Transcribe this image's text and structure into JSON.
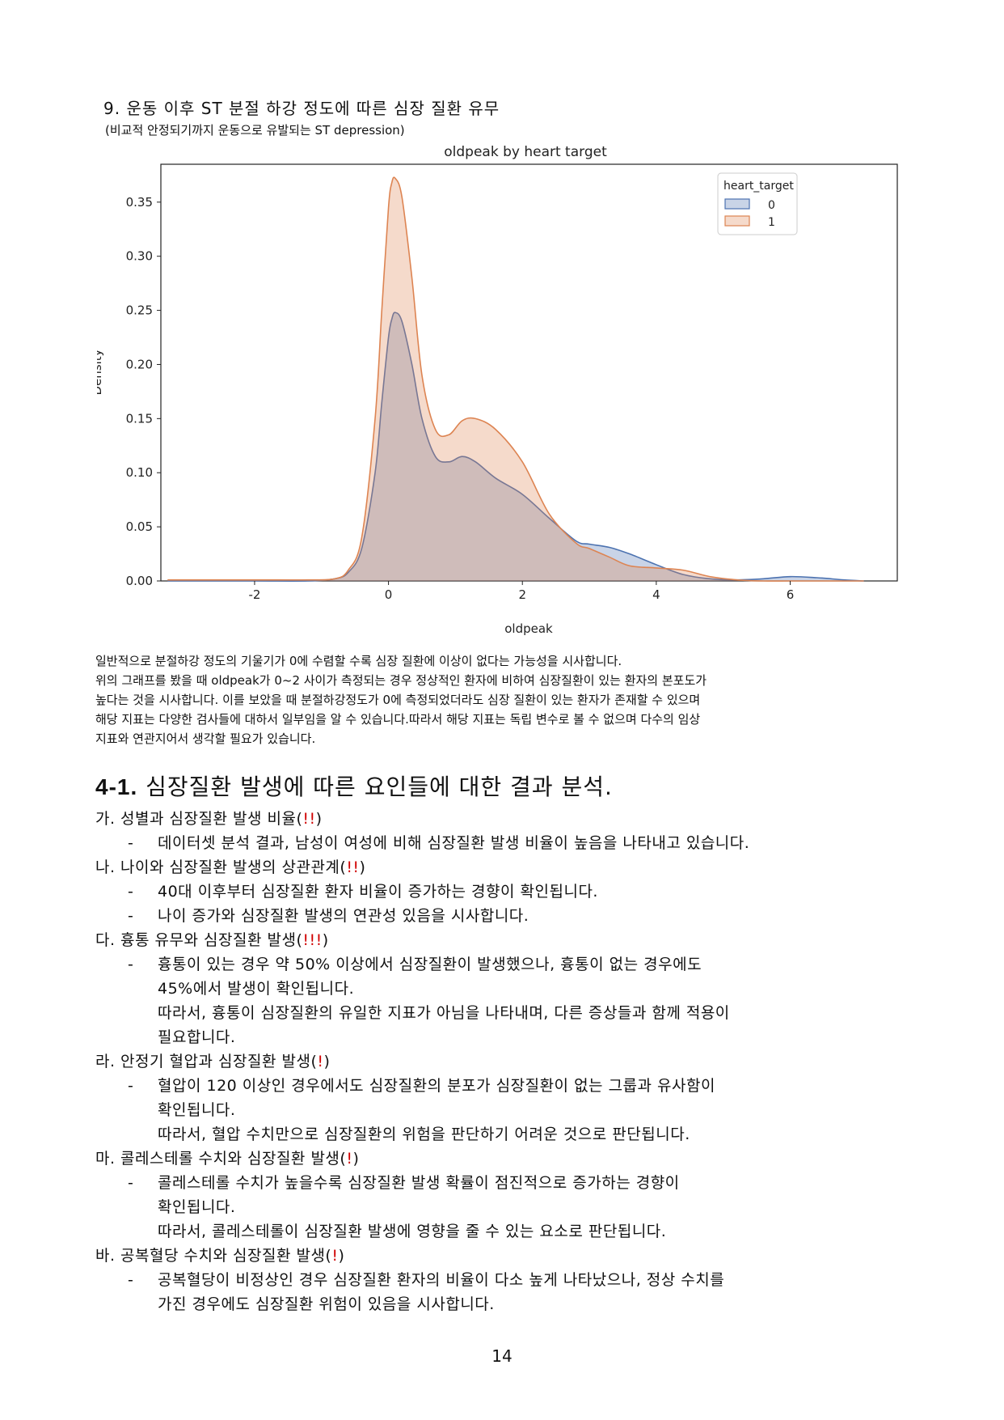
{
  "section": {
    "title": "9. 운동 이후 ST 분절 하강 정도에 따른 심장 질환 유무",
    "subtitle": "(비교적 안정되기까지 운동으로 유발되는 ST depression)"
  },
  "chart_data": {
    "type": "area",
    "title": "oldpeak by heart target",
    "xlabel": "oldpeak",
    "ylabel": "Density",
    "xlim": [
      -3.4,
      7.6
    ],
    "ylim": [
      0,
      0.385
    ],
    "x_ticks": [
      "-2",
      "0",
      "2",
      "4",
      "6"
    ],
    "y_ticks": [
      "0.00",
      "0.05",
      "0.10",
      "0.15",
      "0.20",
      "0.25",
      "0.30",
      "0.35"
    ],
    "grid": false,
    "legend": {
      "title": "heart_target",
      "placement": "top-right"
    },
    "x": [
      -3.3,
      -2,
      -1.2,
      -0.8,
      -0.6,
      -0.4,
      -0.2,
      -0.1,
      0,
      0.05,
      0.1,
      0.2,
      0.35,
      0.5,
      0.7,
      0.9,
      1.1,
      1.3,
      1.6,
      2.0,
      2.4,
      2.8,
      3.0,
      3.3,
      3.6,
      4.0,
      4.4,
      4.8,
      5.2,
      5.6,
      6.0,
      6.4,
      6.8,
      7.1
    ],
    "series": [
      {
        "name": "0",
        "color": "#4c72b0",
        "fill": "#c2d3e6",
        "values": [
          0,
          0,
          0,
          0.002,
          0.008,
          0.03,
          0.1,
          0.165,
          0.225,
          0.242,
          0.248,
          0.24,
          0.2,
          0.15,
          0.115,
          0.11,
          0.115,
          0.11,
          0.095,
          0.08,
          0.058,
          0.037,
          0.034,
          0.031,
          0.025,
          0.015,
          0.006,
          0.002,
          0.001,
          0.002,
          0.004,
          0.003,
          0.001,
          0
        ]
      },
      {
        "name": "1",
        "color": "#dd8452",
        "fill": "#f9d8bf",
        "values": [
          0.001,
          0.001,
          0.001,
          0.002,
          0.01,
          0.04,
          0.15,
          0.25,
          0.345,
          0.368,
          0.372,
          0.355,
          0.28,
          0.19,
          0.14,
          0.135,
          0.148,
          0.15,
          0.14,
          0.11,
          0.062,
          0.035,
          0.03,
          0.022,
          0.014,
          0.012,
          0.01,
          0.004,
          0.001,
          0,
          0,
          0,
          0,
          0
        ]
      }
    ]
  },
  "paragraph": [
    "일반적으로 분절하강 정도의 기울기가 0에 수렴할 수록 심장 질환에 이상이 없다는 가능성을 시사합니다.",
    "위의 그래프를 봤을 때 oldpeak가 0~2 사이가 측정되는 경우 정상적인 환자에 비하여 심장질환이 있는 환자의 본포도가",
    "높다는 것을 시사합니다. 이를 보았을 때 분절하강정도가 0에 측정되었더라도 심장 질환이 있는 환자가 존재할 수 있으며",
    "해당 지표는 다양한 검사들에 대하서 일부임을 알 수 있습니다.따라서 해당 지표는 독립 변수로 볼 수 없으며 다수의 임상",
    "지표와 연관지어서 생각할 필요가 있습니다."
  ],
  "heading41": {
    "number": "4-1.",
    "text": " 심장질환 발생에 따른 요인들에 대한 결과 분석."
  },
  "items": [
    {
      "label": "가. 성별과 심장질환 발생 비율(",
      "excl": "!!",
      "close": ")",
      "bullets": [
        "데이터셋 분석 결과, 남성이 여성에 비해 심장질환 발생 비율이 높음을 나타내고 있습니다."
      ],
      "extra": []
    },
    {
      "label": "나. 나이와 심장질환 발생의 상관관계(",
      "excl": "!!",
      "close": ")",
      "bullets": [
        "40대 이후부터 심장질환 환자 비율이 증가하는 경향이 확인됩니다.",
        "나이 증가와 심장질환 발생의 연관성 있음을 시사합니다."
      ],
      "extra": []
    },
    {
      "label": "다. 흉통 유무와 심장질환 발생(",
      "excl": "!!!",
      "close": ")",
      "bullets": [
        "흉통이 있는 경우 약 50% 이상에서 심장질환이 발생했으나, 흉통이 없는 경우에도"
      ],
      "extra": [
        "45%에서 발생이 확인됩니다.",
        "따라서, 흉통이 심장질환의 유일한 지표가 아님을 나타내며, 다른 증상들과 함께 적용이",
        "필요합니다."
      ]
    },
    {
      "label": "라. 안정기 혈압과 심장질환 발생(",
      "excl": "!",
      "close": ")",
      "bullets": [
        "혈압이 120 이상인 경우에서도 심장질환의 분포가 심장질환이 없는 그룹과 유사함이"
      ],
      "extra": [
        "확인됩니다.",
        "따라서, 혈압 수치만으로 심장질환의 위험을 판단하기 어려운 것으로 판단됩니다."
      ]
    },
    {
      "label": "마. 콜레스테롤 수치와 심장질환 발생(",
      "excl": "!",
      "close": ")",
      "bullets": [
        "콜레스테롤 수치가 높을수록 심장질환 발생 확률이 점진적으로 증가하는 경향이"
      ],
      "extra": [
        "확인됩니다.",
        "따라서, 콜레스테롤이 심장질환 발생에 영향을 줄 수 있는 요소로 판단됩니다."
      ]
    },
    {
      "label": "바. 공복혈당 수치와 심장질환 발생(",
      "excl": "!",
      "close": ")",
      "bullets": [
        "공복혈당이 비정상인 경우 심장질환 환자의 비율이 다소 높게 나타났으나, 정상 수치를"
      ],
      "extra": [
        "가진 경우에도 심장질환 위험이 있음을 시사합니다."
      ]
    }
  ],
  "page_number": "14"
}
